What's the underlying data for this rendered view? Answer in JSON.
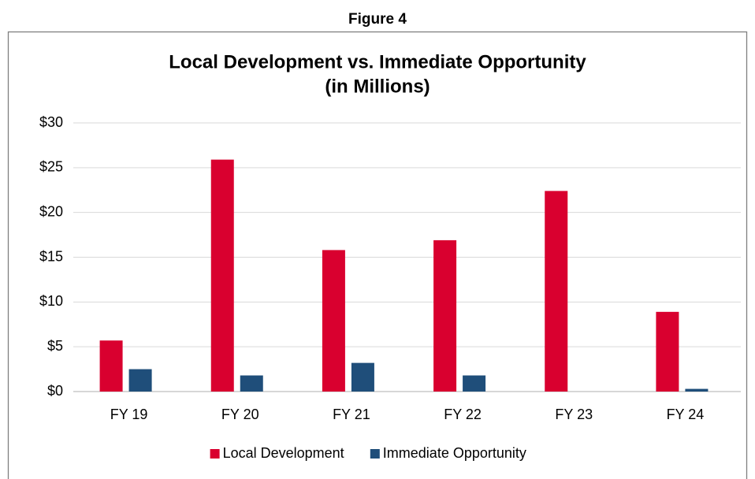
{
  "figure_label": "Figure 4",
  "chart_data": {
    "type": "bar",
    "title": [
      "Local Development vs. Immediate Opportunity",
      "(in Millions)"
    ],
    "categories": [
      "FY 19",
      "FY 20",
      "FY 21",
      "FY 22",
      "FY 23",
      "FY 24"
    ],
    "series": [
      {
        "name": "Local Development",
        "color": "#d9002f",
        "values": [
          5.7,
          25.9,
          15.8,
          16.9,
          22.4,
          8.9
        ]
      },
      {
        "name": "Immediate Opportunity",
        "color": "#1f4e7a",
        "values": [
          2.5,
          1.8,
          3.2,
          1.8,
          0,
          0.3
        ]
      }
    ],
    "ylim": [
      0,
      30
    ],
    "yticks": [
      {
        "value": 0,
        "label": "$0"
      },
      {
        "value": 5,
        "label": "$5"
      },
      {
        "value": 10,
        "label": "$10"
      },
      {
        "value": 15,
        "label": "$15"
      },
      {
        "value": 20,
        "label": "$20"
      },
      {
        "value": 25,
        "label": "$25"
      },
      {
        "value": 30,
        "label": "$30"
      }
    ],
    "grid": true,
    "legend": "bottom"
  }
}
